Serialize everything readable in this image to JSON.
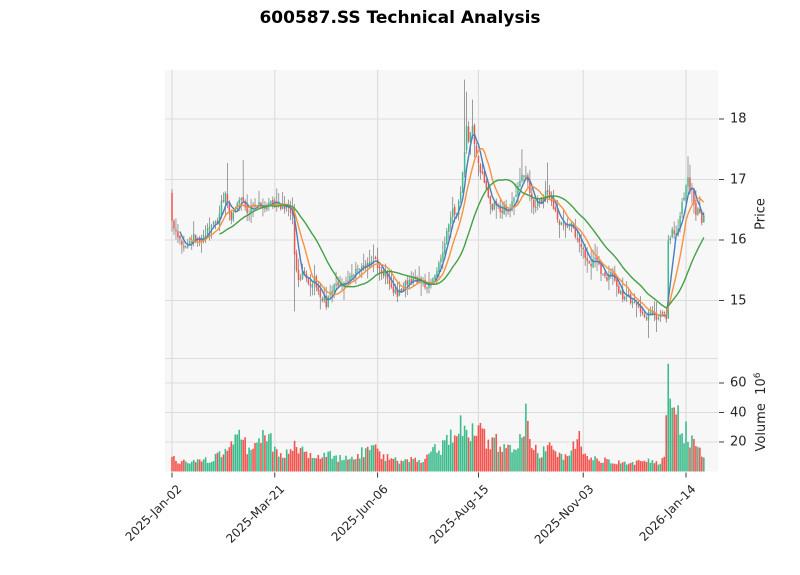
{
  "title": "600587.SS Technical Analysis",
  "price_axis": {
    "label": "Price",
    "ticks": [
      18,
      17,
      16,
      15
    ]
  },
  "volume_axis": {
    "label": "Volume",
    "multiplier": "10",
    "exponent": "6",
    "ticks": [
      60,
      40,
      20
    ]
  },
  "x_axis": {
    "tick_labels": [
      "2025-Jan-02",
      "2025-Mar-21",
      "2025-Jun-06",
      "2025-Aug-15",
      "2025-Nov-03",
      "2026-Jan-14"
    ],
    "tick_days": [
      0,
      52,
      104,
      155,
      208,
      260
    ]
  },
  "chart_data": {
    "type": "candlestick+volume",
    "n_days": 270,
    "first_open": 16.78,
    "price_range": [
      14.0,
      18.8
    ],
    "volume_range_millions": [
      0,
      75
    ],
    "ma_windows": [
      5,
      10,
      25
    ],
    "close_anchors": [
      [
        0,
        16.3
      ],
      [
        2,
        16.15
      ],
      [
        5,
        15.95
      ],
      [
        8,
        15.9
      ],
      [
        11,
        16.05
      ],
      [
        14,
        16.0
      ],
      [
        17,
        16.1
      ],
      [
        20,
        16.25
      ],
      [
        23,
        16.3
      ],
      [
        25,
        16.6
      ],
      [
        27,
        16.8
      ],
      [
        28,
        16.55
      ],
      [
        30,
        16.35
      ],
      [
        32,
        16.55
      ],
      [
        34,
        16.7
      ],
      [
        36,
        16.6
      ],
      [
        38,
        16.45
      ],
      [
        41,
        16.55
      ],
      [
        44,
        16.6
      ],
      [
        47,
        16.55
      ],
      [
        50,
        16.65
      ],
      [
        53,
        16.6
      ],
      [
        56,
        16.55
      ],
      [
        59,
        16.5
      ],
      [
        61,
        16.4
      ],
      [
        62,
        15.75
      ],
      [
        64,
        15.3
      ],
      [
        66,
        15.45
      ],
      [
        69,
        15.25
      ],
      [
        72,
        15.35
      ],
      [
        75,
        15.1
      ],
      [
        78,
        14.95
      ],
      [
        81,
        15.2
      ],
      [
        84,
        15.3
      ],
      [
        87,
        15.25
      ],
      [
        90,
        15.4
      ],
      [
        94,
        15.5
      ],
      [
        98,
        15.6
      ],
      [
        102,
        15.68
      ],
      [
        105,
        15.55
      ],
      [
        108,
        15.4
      ],
      [
        111,
        15.22
      ],
      [
        114,
        15.1
      ],
      [
        117,
        15.25
      ],
      [
        120,
        15.35
      ],
      [
        123,
        15.3
      ],
      [
        126,
        15.28
      ],
      [
        129,
        15.22
      ],
      [
        132,
        15.35
      ],
      [
        135,
        15.6
      ],
      [
        138,
        15.95
      ],
      [
        140,
        16.25
      ],
      [
        142,
        16.5
      ],
      [
        144,
        16.4
      ],
      [
        146,
        16.8
      ],
      [
        148,
        17.5
      ],
      [
        149,
        17.9
      ],
      [
        150,
        17.6
      ],
      [
        152,
        17.85
      ],
      [
        154,
        17.4
      ],
      [
        156,
        17.15
      ],
      [
        158,
        16.95
      ],
      [
        160,
        16.65
      ],
      [
        162,
        16.5
      ],
      [
        164,
        16.62
      ],
      [
        166,
        16.45
      ],
      [
        168,
        16.55
      ],
      [
        170,
        16.48
      ],
      [
        172,
        16.6
      ],
      [
        174,
        16.75
      ],
      [
        176,
        16.95
      ],
      [
        177,
        17.05
      ],
      [
        179,
        17.1
      ],
      [
        181,
        16.8
      ],
      [
        183,
        16.55
      ],
      [
        185,
        16.6
      ],
      [
        188,
        16.7
      ],
      [
        190,
        16.85
      ],
      [
        192,
        16.6
      ],
      [
        194,
        16.45
      ],
      [
        196,
        16.25
      ],
      [
        198,
        16.3
      ],
      [
        200,
        16.2
      ],
      [
        202,
        16.28
      ],
      [
        204,
        16.1
      ],
      [
        206,
        15.95
      ],
      [
        208,
        15.9
      ],
      [
        210,
        15.6
      ],
      [
        212,
        15.55
      ],
      [
        214,
        15.7
      ],
      [
        216,
        15.55
      ],
      [
        218,
        15.4
      ],
      [
        220,
        15.3
      ],
      [
        222,
        15.45
      ],
      [
        224,
        15.28
      ],
      [
        226,
        15.18
      ],
      [
        228,
        15.05
      ],
      [
        230,
        15.1
      ],
      [
        232,
        14.95
      ],
      [
        234,
        15.02
      ],
      [
        236,
        14.88
      ],
      [
        238,
        14.8
      ],
      [
        240,
        14.72
      ],
      [
        242,
        14.82
      ],
      [
        244,
        14.75
      ],
      [
        246,
        14.68
      ],
      [
        248,
        14.78
      ],
      [
        250,
        14.72
      ],
      [
        251,
        15.95
      ],
      [
        253,
        16.15
      ],
      [
        255,
        16.05
      ],
      [
        257,
        16.45
      ],
      [
        259,
        16.75
      ],
      [
        260,
        16.95
      ],
      [
        261,
        17.05
      ],
      [
        262,
        16.85
      ],
      [
        263,
        16.9
      ],
      [
        264,
        16.6
      ],
      [
        265,
        16.45
      ],
      [
        266,
        16.55
      ],
      [
        267,
        16.4
      ],
      [
        268,
        16.3
      ],
      [
        269,
        16.35
      ]
    ],
    "extremes": [
      {
        "d": 0,
        "lo": 16.14
      },
      {
        "d": 28,
        "hi": 17.27
      },
      {
        "d": 36,
        "hi": 17.32
      },
      {
        "d": 62,
        "lo": 14.82
      },
      {
        "d": 78,
        "lo": 14.85
      },
      {
        "d": 102,
        "hi": 15.78
      },
      {
        "d": 148,
        "hi": 18.65
      },
      {
        "d": 149,
        "hi": 18.45
      },
      {
        "d": 152,
        "hi": 18.32
      },
      {
        "d": 177,
        "hi": 17.5
      },
      {
        "d": 190,
        "hi": 17.28
      },
      {
        "d": 241,
        "lo": 14.38
      },
      {
        "d": 251,
        "hi": 16.05
      },
      {
        "d": 261,
        "hi": 17.38
      }
    ],
    "volume_anchors_millions": [
      [
        0,
        9
      ],
      [
        5,
        7
      ],
      [
        10,
        6
      ],
      [
        15,
        7
      ],
      [
        20,
        8
      ],
      [
        25,
        12
      ],
      [
        28,
        16
      ],
      [
        33,
        24
      ],
      [
        36,
        20
      ],
      [
        40,
        12
      ],
      [
        46,
        24
      ],
      [
        48,
        26
      ],
      [
        52,
        15
      ],
      [
        56,
        10
      ],
      [
        62,
        17
      ],
      [
        66,
        14
      ],
      [
        72,
        10
      ],
      [
        78,
        12
      ],
      [
        84,
        9
      ],
      [
        90,
        10
      ],
      [
        96,
        13
      ],
      [
        102,
        15
      ],
      [
        108,
        10
      ],
      [
        114,
        7
      ],
      [
        120,
        8
      ],
      [
        126,
        7
      ],
      [
        130,
        10
      ],
      [
        133,
        17
      ],
      [
        136,
        15
      ],
      [
        139,
        20
      ],
      [
        141,
        28
      ],
      [
        144,
        22
      ],
      [
        147,
        33
      ],
      [
        150,
        30
      ],
      [
        153,
        25
      ],
      [
        156,
        28
      ],
      [
        158,
        24
      ],
      [
        161,
        18
      ],
      [
        164,
        20
      ],
      [
        167,
        14
      ],
      [
        170,
        16
      ],
      [
        173,
        12
      ],
      [
        176,
        20
      ],
      [
        178,
        30
      ],
      [
        179,
        45
      ],
      [
        181,
        20
      ],
      [
        184,
        14
      ],
      [
        187,
        12
      ],
      [
        190,
        18
      ],
      [
        193,
        12
      ],
      [
        196,
        10
      ],
      [
        199,
        9
      ],
      [
        202,
        12
      ],
      [
        205,
        26
      ],
      [
        208,
        12
      ],
      [
        211,
        8
      ],
      [
        214,
        9
      ],
      [
        217,
        7
      ],
      [
        220,
        8
      ],
      [
        223,
        6
      ],
      [
        226,
        7
      ],
      [
        229,
        6
      ],
      [
        232,
        7
      ],
      [
        235,
        6
      ],
      [
        238,
        7
      ],
      [
        241,
        8
      ],
      [
        244,
        6
      ],
      [
        247,
        6
      ],
      [
        249,
        8
      ],
      [
        251,
        70
      ],
      [
        252,
        48
      ],
      [
        253,
        45
      ],
      [
        254,
        43
      ],
      [
        255,
        40
      ],
      [
        256,
        47
      ],
      [
        257,
        33
      ],
      [
        258,
        28
      ],
      [
        259,
        24
      ],
      [
        260,
        30
      ],
      [
        261,
        26
      ],
      [
        262,
        22
      ],
      [
        263,
        25
      ],
      [
        264,
        20
      ],
      [
        265,
        18
      ],
      [
        266,
        15
      ],
      [
        267,
        13
      ],
      [
        268,
        10
      ],
      [
        269,
        12
      ]
    ],
    "colors": {
      "up": "#3CBC8C",
      "down": "#F2544F",
      "wick": "#757575",
      "ma_fast": "#4A7EBB",
      "ma_mid": "#F8923E",
      "ma_slow": "#43A047",
      "panel_bg": "#F7F7F7",
      "grid": "#DCDCDC",
      "text": "#262626"
    }
  }
}
